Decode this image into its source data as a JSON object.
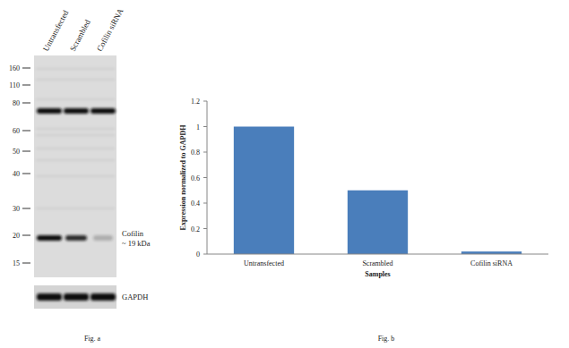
{
  "figure_a": {
    "caption": "Fig. a",
    "lanes": [
      "Untransfected",
      "Scrambled",
      "Cofilin siRNA"
    ],
    "markers": [
      160,
      110,
      80,
      60,
      50,
      40,
      30,
      20,
      15
    ],
    "band_label": [
      "Cofilin",
      "~ 19 kDa"
    ],
    "loading_control": "GAPDH"
  },
  "chart_data": {
    "type": "bar",
    "caption": "Fig. b",
    "categories": [
      "Untransfected",
      "Scrambled",
      "Cofilin siRNA"
    ],
    "values": [
      1,
      0.5,
      0.02
    ],
    "color": "#4a7ebb",
    "ylim": [
      0,
      1.2
    ],
    "yticks": [
      0,
      0.2,
      0.4,
      0.6,
      0.8,
      1,
      1.2
    ],
    "x_label": "Samples",
    "y_label": "Expression normalized to GAPDH",
    "grid": false
  }
}
